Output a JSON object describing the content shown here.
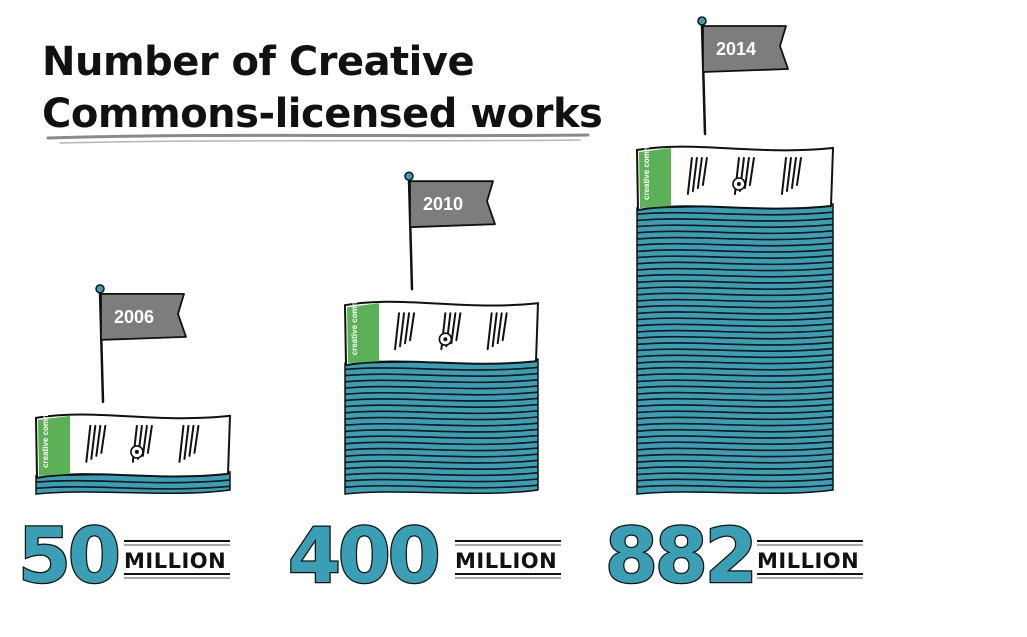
{
  "colors": {
    "stack": "#3a9fb5",
    "stroke": "#111111",
    "flag": "#7d7d7d",
    "pole_tip": "#3a9fb5",
    "cc_green": "#5cb157",
    "underline": "#8a8a8a",
    "paper": "#ffffff"
  },
  "chart_data": {
    "type": "bar",
    "title": "Number of Creative Commons-licensed works",
    "title_lines": [
      "Number of Creative",
      "Commons-licensed works"
    ],
    "categories": [
      "2006",
      "2010",
      "2014"
    ],
    "values": [
      50,
      400,
      882
    ],
    "value_labels": [
      "50",
      "400",
      "882"
    ],
    "unit_label": "MILLION",
    "label_brand": "creative commons",
    "icon": "creative-commons-bill-stack-icon",
    "flag_icon": "flag-icon"
  }
}
